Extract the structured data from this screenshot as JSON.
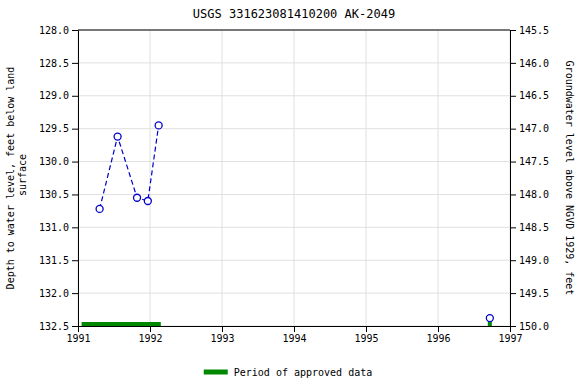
{
  "chart_data": {
    "type": "line",
    "title": "USGS 331623081410200 AK-2049",
    "x_label": null,
    "y_label": "Depth to water level, feet below land\n surface",
    "y2_label": "Groundwater level above NGVD 1929, feet",
    "xlim": [
      1991.0,
      1997.0
    ],
    "xticks": [
      1991,
      1992,
      1993,
      1994,
      1995,
      1996,
      1997
    ],
    "ylim": [
      132.5,
      128.0
    ],
    "yticks": [
      {
        "value": 128.0,
        "label": "128.0"
      },
      128.5,
      {
        "value": 129.0,
        "label": "129.0"
      },
      129.5,
      {
        "value": 130.0,
        "label": "130.0"
      },
      130.5,
      {
        "value": 131.0,
        "label": "131.0"
      },
      131.5,
      {
        "value": 132.0,
        "label": "132.0"
      },
      132.5
    ],
    "y2lim": [
      150.0,
      145.5
    ],
    "y2ticks": [
      {
        "value": 150.0,
        "label": "150.0"
      },
      149.5,
      {
        "value": 149.0,
        "label": "149.0"
      },
      148.5,
      {
        "value": 148.0,
        "label": "148.0"
      },
      147.5,
      {
        "value": 147.0,
        "label": "147.0"
      },
      146.5,
      {
        "value": 146.0,
        "label": "146.0"
      },
      145.5
    ],
    "grid": true,
    "legend": "bottom",
    "series": [
      {
        "type": "line",
        "color": "#0000cc",
        "line_style": "dashed",
        "marker": "circle",
        "x": [
          1991.3,
          1991.55,
          1991.82,
          1991.97,
          1992.12
        ],
        "values": [
          130.72,
          129.62,
          130.55,
          130.6,
          129.45
        ]
      },
      {
        "type": "scatter",
        "color": "#0000cc",
        "marker": "circle",
        "x": [
          1996.72
        ],
        "values": [
          132.38
        ]
      }
    ],
    "bands": [
      {
        "name": "Period of approved data",
        "color": "#008800",
        "ranges": [
          [
            1991.05,
            1992.15
          ]
        ],
        "ticks": [
          1996.72
        ]
      }
    ]
  }
}
